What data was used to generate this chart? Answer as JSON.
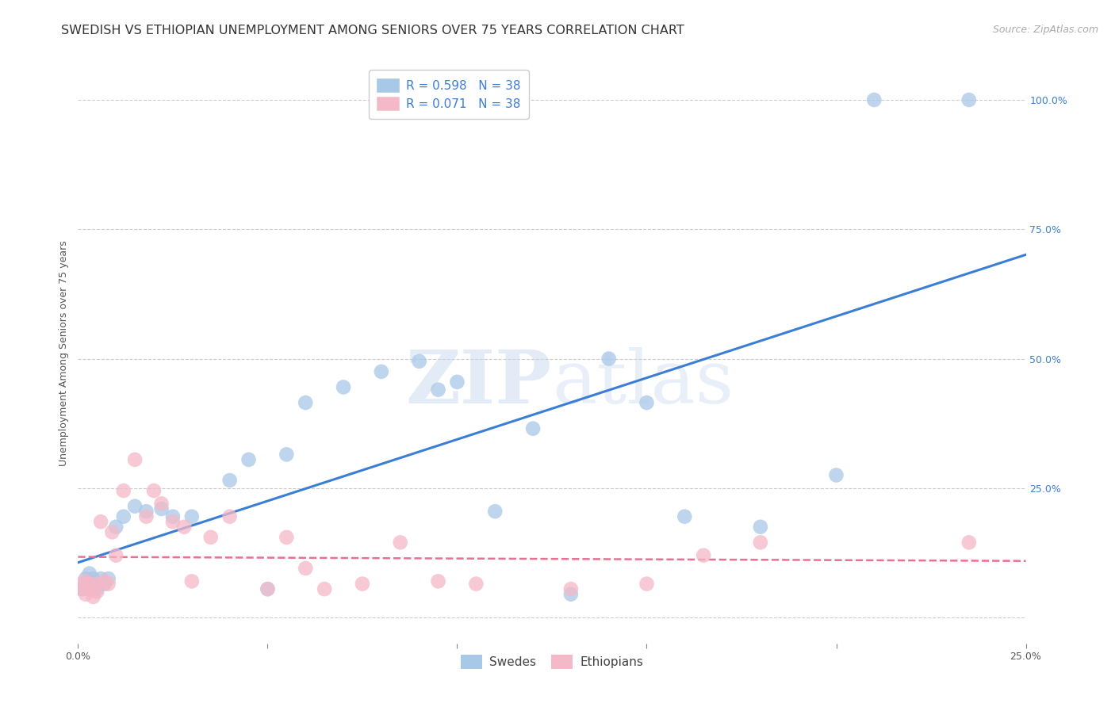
{
  "title": "SWEDISH VS ETHIOPIAN UNEMPLOYMENT AMONG SENIORS OVER 75 YEARS CORRELATION CHART",
  "source": "Source: ZipAtlas.com",
  "ylabel": "Unemployment Among Seniors over 75 years",
  "xlim": [
    0.0,
    0.25
  ],
  "ylim": [
    -0.05,
    1.07
  ],
  "xtick_positions": [
    0.0,
    0.05,
    0.1,
    0.15,
    0.2,
    0.25
  ],
  "xticklabels": [
    "0.0%",
    "",
    "",
    "",
    "",
    "25.0%"
  ],
  "ytick_positions": [
    0.0,
    0.25,
    0.5,
    0.75,
    1.0
  ],
  "yticklabels": [
    "",
    "25.0%",
    "50.0%",
    "75.0%",
    "100.0%"
  ],
  "swede_color": "#a8c8e8",
  "ethiopian_color": "#f4b8c8",
  "swede_line_color": "#3a7fd5",
  "ethiopian_line_color": "#e87090",
  "R_swede": 0.598,
  "R_ethiopian": 0.071,
  "N": 38,
  "watermark_zip": "ZIP",
  "watermark_atlas": "atlas",
  "swedes_x": [
    0.001,
    0.002,
    0.002,
    0.003,
    0.003,
    0.004,
    0.004,
    0.005,
    0.006,
    0.007,
    0.008,
    0.01,
    0.012,
    0.015,
    0.018,
    0.022,
    0.025,
    0.03,
    0.04,
    0.045,
    0.05,
    0.055,
    0.06,
    0.07,
    0.08,
    0.09,
    0.095,
    0.1,
    0.11,
    0.12,
    0.13,
    0.14,
    0.15,
    0.16,
    0.18,
    0.2,
    0.21,
    0.235
  ],
  "swedes_y": [
    0.055,
    0.075,
    0.065,
    0.055,
    0.085,
    0.065,
    0.075,
    0.055,
    0.075,
    0.065,
    0.075,
    0.175,
    0.195,
    0.215,
    0.205,
    0.21,
    0.195,
    0.195,
    0.265,
    0.305,
    0.055,
    0.315,
    0.415,
    0.445,
    0.475,
    0.495,
    0.44,
    0.455,
    0.205,
    0.365,
    0.045,
    0.5,
    0.415,
    0.195,
    0.175,
    0.275,
    1.0,
    1.0
  ],
  "ethiopians_x": [
    0.001,
    0.001,
    0.002,
    0.002,
    0.003,
    0.003,
    0.004,
    0.004,
    0.005,
    0.005,
    0.006,
    0.007,
    0.008,
    0.009,
    0.01,
    0.012,
    0.015,
    0.018,
    0.02,
    0.022,
    0.025,
    0.028,
    0.03,
    0.035,
    0.04,
    0.05,
    0.055,
    0.06,
    0.065,
    0.075,
    0.085,
    0.095,
    0.105,
    0.13,
    0.15,
    0.165,
    0.18,
    0.235
  ],
  "ethiopians_y": [
    0.055,
    0.065,
    0.045,
    0.07,
    0.055,
    0.065,
    0.055,
    0.04,
    0.05,
    0.065,
    0.185,
    0.07,
    0.065,
    0.165,
    0.12,
    0.245,
    0.305,
    0.195,
    0.245,
    0.22,
    0.185,
    0.175,
    0.07,
    0.155,
    0.195,
    0.055,
    0.155,
    0.095,
    0.055,
    0.065,
    0.145,
    0.07,
    0.065,
    0.055,
    0.065,
    0.12,
    0.145,
    0.145
  ],
  "background_color": "#ffffff",
  "grid_color": "#cccccc",
  "title_fontsize": 11.5,
  "axis_label_fontsize": 9,
  "tick_fontsize": 9,
  "legend_fontsize": 11,
  "source_fontsize": 9
}
